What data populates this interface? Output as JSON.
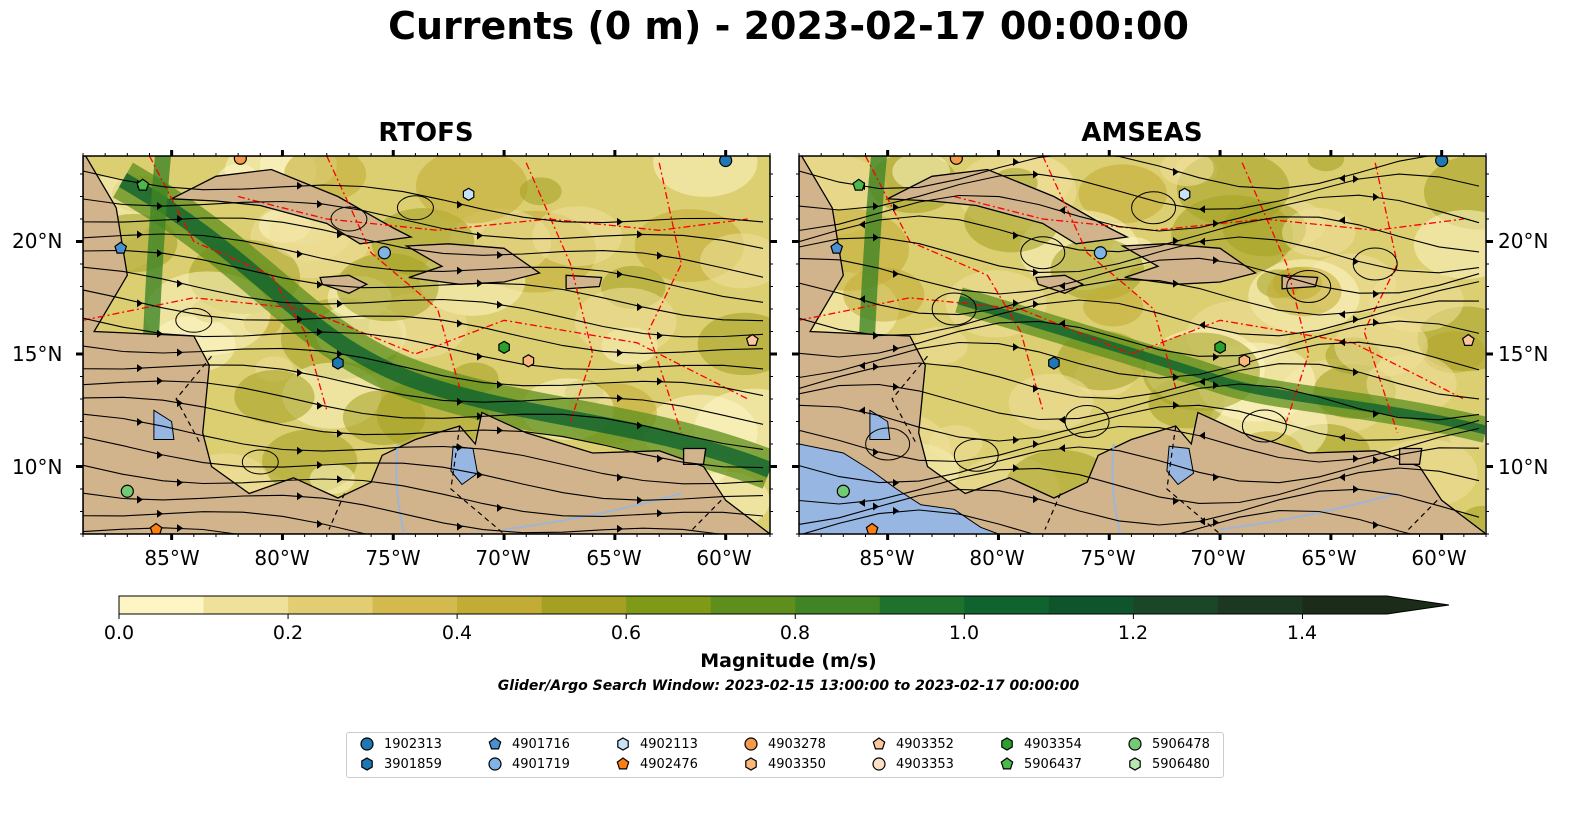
{
  "title": "Currents (0 m) - 2023-02-17 00:00:00",
  "panels": [
    {
      "title": "RTOFS"
    },
    {
      "title": "AMSEAS"
    }
  ],
  "lat_labels": [
    "20°N",
    "15°N",
    "10°N"
  ],
  "lon_labels": [
    "85°W",
    "80°W",
    "75°W",
    "70°W",
    "65°W",
    "60°W"
  ],
  "colorbar": {
    "label": "Magnitude (m/s)",
    "ticks": [
      "0.0",
      "0.2",
      "0.4",
      "0.6",
      "0.8",
      "1.0",
      "1.2",
      "1.4"
    ],
    "min": 0.0,
    "max": 1.5,
    "extend": "max",
    "colors": [
      "#fdf5c4",
      "#efe09a",
      "#e2cd73",
      "#d4b94f",
      "#c2ac35",
      "#a3a022",
      "#7f9a17",
      "#5e8f1c",
      "#3f8425",
      "#1f722c",
      "#0f632e",
      "#0e552b",
      "#1b4728",
      "#1c3820",
      "#1b2c18"
    ]
  },
  "search_window": "Glider/Argo Search Window: 2023-02-15 13:00:00 to 2023-02-17 00:00:00",
  "legend": [
    {
      "id": "1902313",
      "marker": "circle",
      "color": "#1f77b4"
    },
    {
      "id": "3901859",
      "marker": "hexagon",
      "color": "#1f77b4"
    },
    {
      "id": "4901716",
      "marker": "pentagon",
      "color": "#4a90d0"
    },
    {
      "id": "4901719",
      "marker": "circle",
      "color": "#7fb5e6"
    },
    {
      "id": "4902113",
      "marker": "hexagon",
      "color": "#c6e2f7"
    },
    {
      "id": "4902476",
      "marker": "pentagon",
      "color": "#ff7f0e"
    },
    {
      "id": "4903278",
      "marker": "circle",
      "color": "#f5994a"
    },
    {
      "id": "4903350",
      "marker": "hexagon",
      "color": "#fbb87a"
    },
    {
      "id": "4903352",
      "marker": "pentagon",
      "color": "#fdc79e"
    },
    {
      "id": "4903353",
      "marker": "circle",
      "color": "#fde0c5"
    },
    {
      "id": "4903354",
      "marker": "hexagon",
      "color": "#2ca02c"
    },
    {
      "id": "5906437",
      "marker": "pentagon",
      "color": "#4cb84c"
    },
    {
      "id": "5906478",
      "marker": "circle",
      "color": "#74c974"
    },
    {
      "id": "5906480",
      "marker": "hexagon",
      "color": "#b7e8b0"
    }
  ],
  "floats": [
    {
      "id": "1902313",
      "lon": -60.0,
      "lat": 23.6
    },
    {
      "id": "3901859",
      "lon": -77.5,
      "lat": 14.6
    },
    {
      "id": "4901716",
      "lon": -87.3,
      "lat": 19.7
    },
    {
      "id": "4901719",
      "lon": -75.4,
      "lat": 19.5
    },
    {
      "id": "4902113",
      "lon": -71.6,
      "lat": 22.1
    },
    {
      "id": "4902476",
      "lon": -85.7,
      "lat": 7.2
    },
    {
      "id": "4903278",
      "lon": -81.9,
      "lat": 23.7
    },
    {
      "id": "4903350",
      "lon": -68.9,
      "lat": 14.7
    },
    {
      "id": "4903352",
      "lon": -58.8,
      "lat": 15.6
    },
    {
      "id": "4903354",
      "lon": -70.0,
      "lat": 15.3
    },
    {
      "id": "5906437",
      "lon": -86.3,
      "lat": 22.5
    },
    {
      "id": "5906478",
      "lon": -87.0,
      "lat": 8.9
    }
  ]
}
